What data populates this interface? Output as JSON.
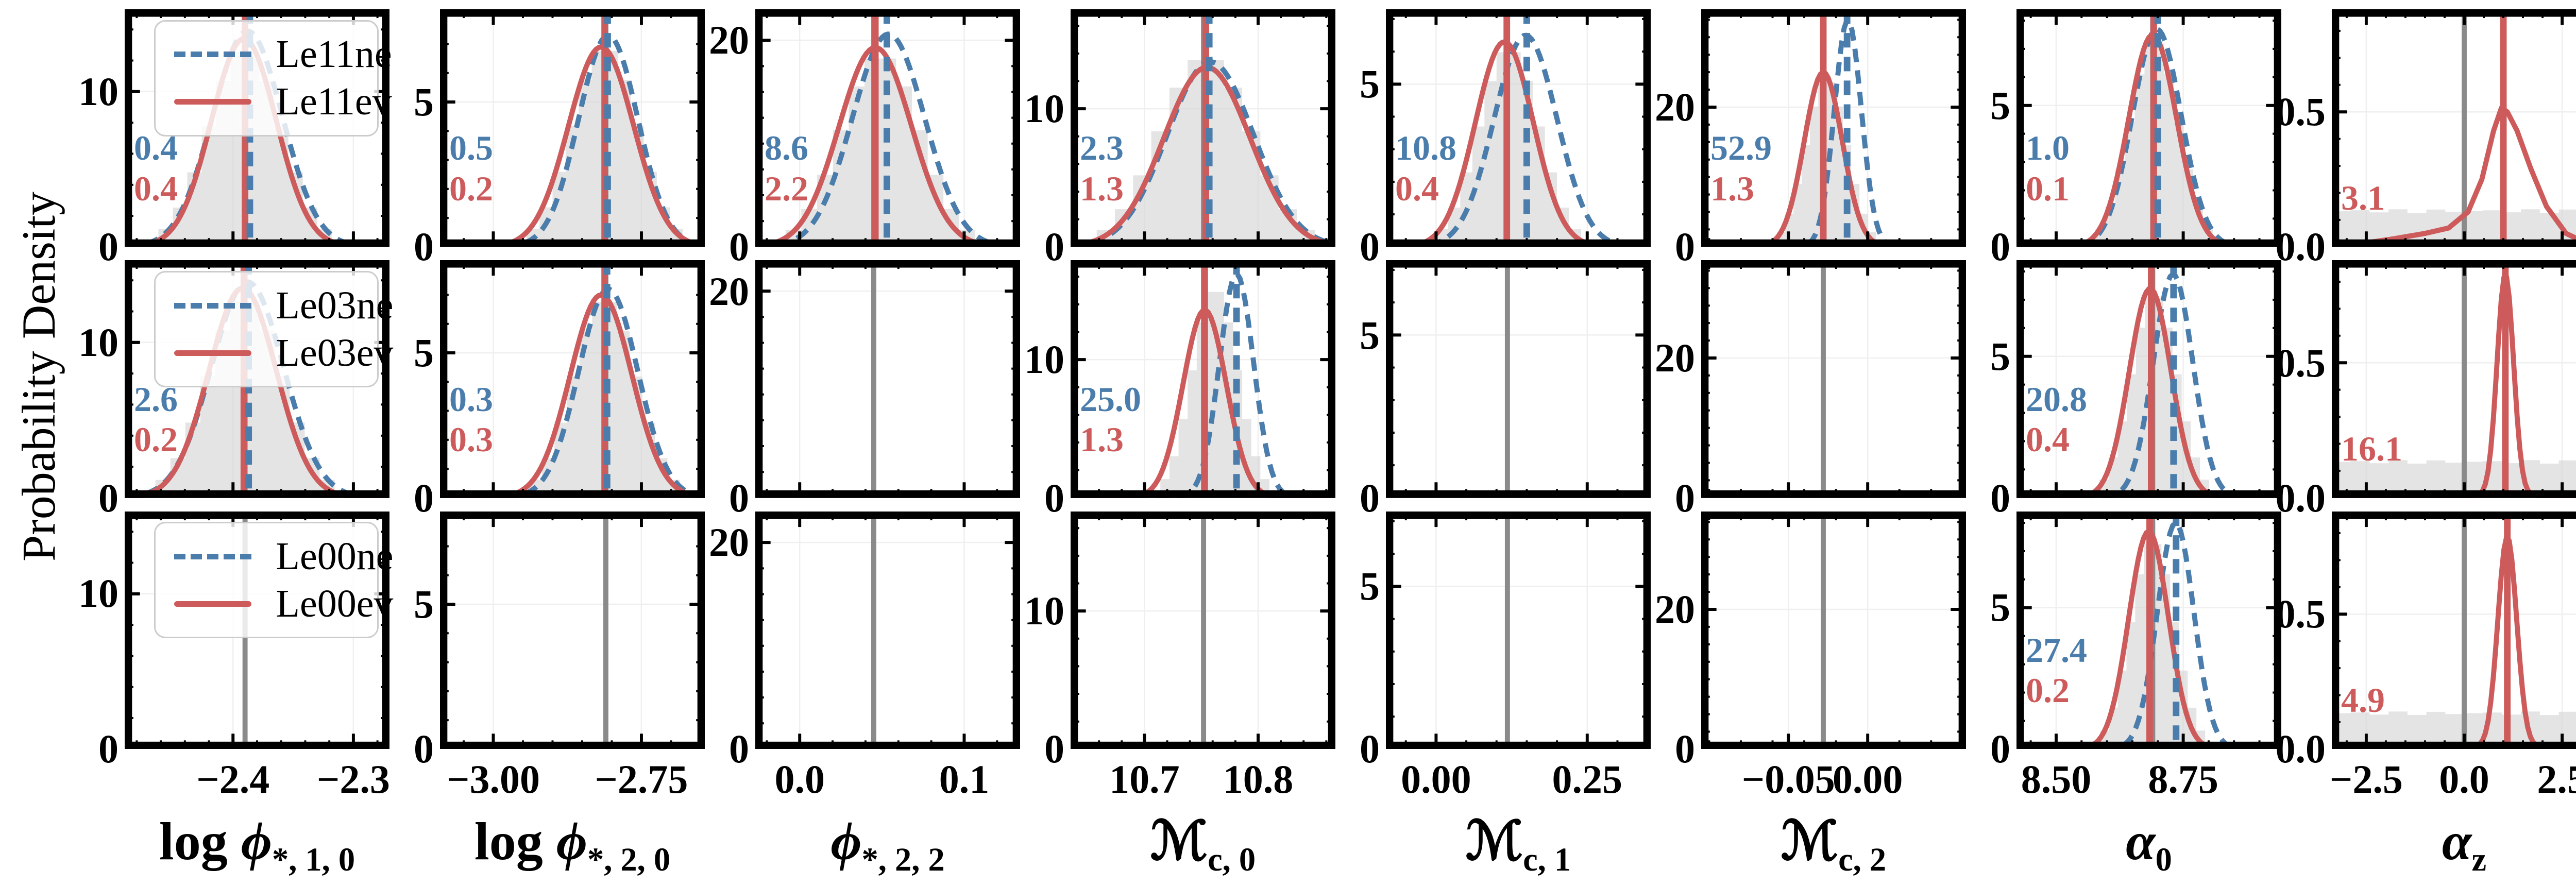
{
  "chart_data": {
    "type": "pdf-grid",
    "description": "3x8 grid of 1-D marginal posterior probability density panels. Rows = model pairs (Le11, Le03, Le00), columns = luminosity-function parameters. Blue dashed = 'ne' model, red solid = 'ev' model, gray band = reference histogram, gray vertical line = true value, colored vertical lines = posterior medians. Colored numbers are percent offsets (blue = ne, red = ev).",
    "ylabel": "Probability Density",
    "colors": {
      "blue": "#4a7dab",
      "red": "#cd5b5b",
      "gray_vline": "#8a8a8a",
      "hist_fill": "#d3d3d3",
      "grid": "#efefef",
      "spine": "#000000",
      "legend_border": "#cccccc"
    },
    "rows": [
      {
        "legend": [
          "Le11ne",
          "Le11ev"
        ]
      },
      {
        "legend": [
          "Le03ne",
          "Le03ev"
        ]
      },
      {
        "legend": [
          "Le00ne",
          "Le00ev"
        ]
      }
    ],
    "columns": [
      {
        "label_html": "log <i>ϕ</i><sub>*, 1, 0</sub>",
        "xmin": -2.49,
        "xmax": -2.27,
        "xminor": 0.02,
        "xticks": [
          {
            "v": -2.4,
            "t": "−2.4"
          },
          {
            "v": -2.3,
            "t": "−2.3"
          }
        ],
        "ymax": 15.3,
        "yminor": 2,
        "yticks": [
          {
            "v": 0,
            "t": "0"
          },
          {
            "v": 10,
            "t": "10"
          }
        ]
      },
      {
        "label_html": "log <i>ϕ</i><sub>*, 2, 0</sub>",
        "xmin": -3.09,
        "xmax": -2.643,
        "xminor": 0.05,
        "xticks": [
          {
            "v": -3.0,
            "t": "−3.00"
          },
          {
            "v": -2.75,
            "t": "−2.75"
          }
        ],
        "ymax": 8.2,
        "yminor": 1,
        "yticks": [
          {
            "v": 0,
            "t": "0"
          },
          {
            "v": 5,
            "t": "5"
          }
        ]
      },
      {
        "label_html": "<i>ϕ</i><sub>*, 2, 2</sub>",
        "xmin": -0.027,
        "xmax": 0.134,
        "xminor": 0.02,
        "xticks": [
          {
            "v": 0.0,
            "t": "0.0"
          },
          {
            "v": 0.1,
            "t": "0.1"
          }
        ],
        "ymax": 23.0,
        "yminor": 2.5,
        "yticks": [
          {
            "v": 0,
            "t": "0"
          },
          {
            "v": 20,
            "t": "20"
          }
        ]
      },
      {
        "label_html": "ℳ<sub>c, 0</sub>",
        "xmin": 10.635,
        "xmax": 10.868,
        "xminor": 0.02,
        "xticks": [
          {
            "v": 10.7,
            "t": "10.7"
          },
          {
            "v": 10.8,
            "t": "10.8"
          }
        ],
        "ymax": 17.2,
        "yminor": 2,
        "yticks": [
          {
            "v": 0,
            "t": "0"
          },
          {
            "v": 10,
            "t": "10"
          }
        ]
      },
      {
        "label_html": "ℳ<sub>c, 1</sub>",
        "xmin": -0.083,
        "xmax": 0.355,
        "xminor": 0.05,
        "xticks": [
          {
            "v": 0.0,
            "t": "0.00"
          },
          {
            "v": 0.25,
            "t": "0.25"
          }
        ],
        "ymax": 7.3,
        "yminor": 1,
        "yticks": [
          {
            "v": 0,
            "t": "0"
          },
          {
            "v": 5,
            "t": "5"
          }
        ]
      },
      {
        "label_html": "ℳ<sub>c, 2</sub>",
        "xmin": -0.105,
        "xmax": 0.062,
        "xminor": 0.02,
        "xticks": [
          {
            "v": -0.05,
            "t": "−0.05"
          },
          {
            "v": 0.0,
            "t": "0.00"
          }
        ],
        "ymax": 34.0,
        "yminor": 2.5,
        "yticks": [
          {
            "v": 0,
            "t": "0"
          },
          {
            "v": 20,
            "t": "20"
          }
        ]
      },
      {
        "label_html": "<i>α</i><sub>0</sub>",
        "xmin": 8.422,
        "xmax": 8.943,
        "xminor": 0.05,
        "xticks": [
          {
            "v": 8.5,
            "t": "8.50"
          },
          {
            "v": 8.75,
            "t": "8.75"
          }
        ],
        "ymax": 8.4,
        "yminor": 1,
        "yticks": [
          {
            "v": 0,
            "t": "0"
          },
          {
            "v": 5,
            "t": "5"
          }
        ]
      },
      {
        "label_html": "<i>α</i><sub>z</sub>",
        "xmin": -3.38,
        "xmax": 3.38,
        "xminor": 0.5,
        "xticks": [
          {
            "v": -2.5,
            "t": "−2.5"
          },
          {
            "v": 0.0,
            "t": "0.0"
          },
          {
            "v": 2.5,
            "t": "2.5"
          }
        ],
        "ymax": 0.88,
        "yminor": 0.1,
        "yticks": [
          {
            "v": 0,
            "t": "0.0"
          },
          {
            "v": 0.5,
            "t": "0.5"
          }
        ]
      }
    ],
    "panels": [
      {
        "r": 0,
        "c": 0,
        "blue_label": "0.4",
        "red_label": "0.4",
        "gray_vline": -2.39,
        "red_vline": -2.39,
        "blue_vline": -2.386,
        "red_curve": {
          "mu": -2.391,
          "sigma": 0.027,
          "peak": 13.4
        },
        "blue_curve": {
          "mu": -2.388,
          "sigma": 0.029,
          "peak": 13.9
        },
        "hist": {
          "kind": "gauss",
          "mu": -2.39,
          "sigma": 0.03,
          "peak": 12.8
        }
      },
      {
        "r": 0,
        "c": 1,
        "blue_label": "0.5",
        "red_label": "0.2",
        "gray_vline": -2.81,
        "red_vline": -2.812,
        "blue_vline": -2.807,
        "red_curve": {
          "mu": -2.818,
          "sigma": 0.055,
          "peak": 6.9
        },
        "blue_curve": {
          "mu": -2.806,
          "sigma": 0.05,
          "peak": 7.3
        },
        "hist": {
          "kind": "gauss",
          "mu": -2.812,
          "sigma": 0.055,
          "peak": 6.9
        }
      },
      {
        "r": 0,
        "c": 2,
        "blue_label": "8.6",
        "red_label": "2.2",
        "gray_vline": 0.045,
        "red_vline": 0.046,
        "blue_vline": 0.053,
        "red_curve": {
          "mu": 0.046,
          "sigma": 0.022,
          "peak": 19.3
        },
        "blue_curve": {
          "mu": 0.054,
          "sigma": 0.022,
          "peak": 20.6
        },
        "hist": {
          "kind": "gauss",
          "mu": 0.049,
          "sigma": 0.024,
          "peak": 18.6
        }
      },
      {
        "r": 0,
        "c": 3,
        "blue_label": "2.3",
        "red_label": "1.3",
        "gray_vline": 10.752,
        "red_vline": 10.754,
        "blue_vline": 10.757,
        "red_curve": {
          "mu": 10.755,
          "sigma": 0.038,
          "peak": 13.0
        },
        "blue_curve": {
          "mu": 10.758,
          "sigma": 0.038,
          "peak": 13.4
        },
        "hist": {
          "kind": "gauss",
          "mu": 10.754,
          "sigma": 0.04,
          "peak": 13.8
        }
      },
      {
        "r": 0,
        "c": 4,
        "blue_label": "10.8",
        "red_label": "0.4",
        "gray_vline": 0.118,
        "red_vline": 0.117,
        "blue_vline": 0.15,
        "red_curve": {
          "mu": 0.113,
          "sigma": 0.048,
          "peak": 6.3
        },
        "blue_curve": {
          "mu": 0.148,
          "sigma": 0.052,
          "peak": 6.5
        },
        "hist": {
          "kind": "gauss",
          "mu": 0.12,
          "sigma": 0.05,
          "peak": 6.1
        }
      },
      {
        "r": 0,
        "c": 5,
        "blue_label": "52.9",
        "red_label": "1.3",
        "gray_vline": -0.028,
        "red_vline": -0.028,
        "blue_vline": -0.013,
        "red_curve": {
          "mu": -0.028,
          "sigma": 0.012,
          "peak": 25.0
        },
        "blue_curve": {
          "mu": -0.0125,
          "sigma": 0.0085,
          "peak": 32.5
        },
        "hist": {
          "kind": "gauss",
          "mu": -0.026,
          "sigma": 0.013,
          "peak": 24.0
        }
      },
      {
        "r": 0,
        "c": 6,
        "blue_label": "1.0",
        "red_label": "0.1",
        "gray_vline": 8.69,
        "red_vline": 8.692,
        "blue_vline": 8.7,
        "red_curve": {
          "mu": 8.69,
          "sigma": 0.047,
          "peak": 7.5
        },
        "blue_curve": {
          "mu": 8.698,
          "sigma": 0.048,
          "peak": 7.7
        },
        "hist": {
          "kind": "gauss",
          "mu": 8.693,
          "sigma": 0.048,
          "peak": 7.3
        }
      },
      {
        "r": 0,
        "c": 7,
        "blue_label": null,
        "red_label": "3.1",
        "gray_vline": 0.0,
        "red_vline": 1.0,
        "blue_vline": null,
        "red_curve": {
          "pts": [
            [
              -3.38,
              0.02
            ],
            [
              -2.6,
              0.013
            ],
            [
              -1.8,
              0.03
            ],
            [
              -1.0,
              0.05
            ],
            [
              -0.4,
              0.07
            ],
            [
              0.1,
              0.13
            ],
            [
              0.45,
              0.25
            ],
            [
              0.75,
              0.43
            ],
            [
              0.95,
              0.515
            ],
            [
              1.1,
              0.5
            ],
            [
              1.35,
              0.43
            ],
            [
              1.7,
              0.29
            ],
            [
              2.1,
              0.15
            ],
            [
              2.6,
              0.05
            ],
            [
              3.1,
              0.015
            ],
            [
              3.38,
              0.01
            ]
          ]
        },
        "blue_curve": null,
        "hist": {
          "kind": "flat",
          "base": 0.133
        }
      },
      {
        "r": 1,
        "c": 0,
        "blue_label": "2.6",
        "red_label": "0.2",
        "gray_vline": -2.39,
        "red_vline": -2.391,
        "blue_vline": -2.387,
        "red_curve": {
          "mu": -2.392,
          "sigma": 0.028,
          "peak": 13.5
        },
        "blue_curve": {
          "mu": -2.388,
          "sigma": 0.03,
          "peak": 13.9
        },
        "hist": {
          "kind": "gauss",
          "mu": -2.39,
          "sigma": 0.031,
          "peak": 12.9
        }
      },
      {
        "r": 1,
        "c": 1,
        "blue_label": "0.3",
        "red_label": "0.3",
        "gray_vline": -2.81,
        "red_vline": -2.812,
        "blue_vline": -2.808,
        "red_curve": {
          "mu": -2.818,
          "sigma": 0.052,
          "peak": 7.0
        },
        "blue_curve": {
          "mu": -2.806,
          "sigma": 0.05,
          "peak": 7.2
        },
        "hist": {
          "kind": "gauss",
          "mu": -2.812,
          "sigma": 0.053,
          "peak": 6.9
        }
      },
      {
        "r": 1,
        "c": 2,
        "blue_label": null,
        "red_label": null,
        "gray_vline": 0.045,
        "red_vline": null,
        "blue_vline": null,
        "red_curve": null,
        "blue_curve": null,
        "hist": null
      },
      {
        "r": 1,
        "c": 3,
        "blue_label": "25.0",
        "red_label": "1.3",
        "gray_vline": 10.752,
        "red_vline": 10.753,
        "blue_vline": 10.781,
        "red_curve": {
          "mu": 10.753,
          "sigma": 0.019,
          "peak": 13.6
        },
        "blue_curve": {
          "mu": 10.781,
          "sigma": 0.015,
          "peak": 16.2
        },
        "hist": {
          "kind": "gauss",
          "mu": 10.762,
          "sigma": 0.02,
          "peak": 15.2
        }
      },
      {
        "r": 1,
        "c": 4,
        "blue_label": null,
        "red_label": null,
        "gray_vline": 0.118,
        "red_vline": null,
        "blue_vline": null,
        "red_curve": null,
        "blue_curve": null,
        "hist": null
      },
      {
        "r": 1,
        "c": 5,
        "blue_label": null,
        "red_label": null,
        "gray_vline": -0.028,
        "red_vline": null,
        "blue_vline": null,
        "red_curve": null,
        "blue_curve": null,
        "hist": null
      },
      {
        "r": 1,
        "c": 6,
        "blue_label": "20.8",
        "red_label": "0.4",
        "gray_vline": 8.69,
        "red_vline": 8.687,
        "blue_vline": 8.731,
        "red_curve": {
          "mu": 8.685,
          "sigma": 0.041,
          "peak": 7.4
        },
        "blue_curve": {
          "mu": 8.73,
          "sigma": 0.039,
          "peak": 7.9
        },
        "hist": {
          "kind": "gauss",
          "mu": 8.693,
          "sigma": 0.045,
          "peak": 7.2
        }
      },
      {
        "r": 1,
        "c": 7,
        "blue_label": null,
        "red_label": "16.1",
        "gray_vline": 0.0,
        "red_vline": 1.05,
        "blue_vline": null,
        "red_curve": {
          "mu": 1.05,
          "sigma": 0.21,
          "peak": 0.82,
          "base": 0.008
        },
        "blue_curve": null,
        "hist": {
          "kind": "flat",
          "base": 0.133
        }
      },
      {
        "r": 2,
        "c": 0,
        "blue_label": null,
        "red_label": null,
        "gray_vline": -2.39,
        "red_vline": null,
        "blue_vline": null,
        "red_curve": null,
        "blue_curve": null,
        "hist": null
      },
      {
        "r": 2,
        "c": 1,
        "blue_label": null,
        "red_label": null,
        "gray_vline": -2.81,
        "red_vline": null,
        "blue_vline": null,
        "red_curve": null,
        "blue_curve": null,
        "hist": null
      },
      {
        "r": 2,
        "c": 2,
        "blue_label": null,
        "red_label": null,
        "gray_vline": 0.045,
        "red_vline": null,
        "blue_vline": null,
        "red_curve": null,
        "blue_curve": null,
        "hist": null
      },
      {
        "r": 2,
        "c": 3,
        "blue_label": null,
        "red_label": null,
        "gray_vline": 10.752,
        "red_vline": null,
        "blue_vline": null,
        "red_curve": null,
        "blue_curve": null,
        "hist": null
      },
      {
        "r": 2,
        "c": 4,
        "blue_label": null,
        "red_label": null,
        "gray_vline": 0.118,
        "red_vline": null,
        "blue_vline": null,
        "red_curve": null,
        "blue_curve": null,
        "hist": null
      },
      {
        "r": 2,
        "c": 5,
        "blue_label": null,
        "red_label": null,
        "gray_vline": -0.028,
        "red_vline": null,
        "blue_vline": null,
        "red_curve": null,
        "blue_curve": null,
        "hist": null
      },
      {
        "r": 2,
        "c": 6,
        "blue_label": "27.4",
        "red_label": "0.2",
        "gray_vline": 8.69,
        "red_vline": 8.684,
        "blue_vline": 8.736,
        "red_curve": {
          "mu": 8.682,
          "sigma": 0.039,
          "peak": 7.7
        },
        "blue_curve": {
          "mu": 8.735,
          "sigma": 0.036,
          "peak": 8.0
        },
        "hist": {
          "kind": "gauss",
          "mu": 8.69,
          "sigma": 0.043,
          "peak": 7.4
        }
      },
      {
        "r": 2,
        "c": 7,
        "blue_label": null,
        "red_label": "4.9",
        "gray_vline": 0.0,
        "red_vline": 1.1,
        "blue_vline": null,
        "red_curve": {
          "mu": 1.1,
          "sigma": 0.24,
          "peak": 0.78,
          "base": 0.008
        },
        "blue_curve": null,
        "hist": {
          "kind": "flat",
          "base": 0.133
        }
      }
    ]
  }
}
